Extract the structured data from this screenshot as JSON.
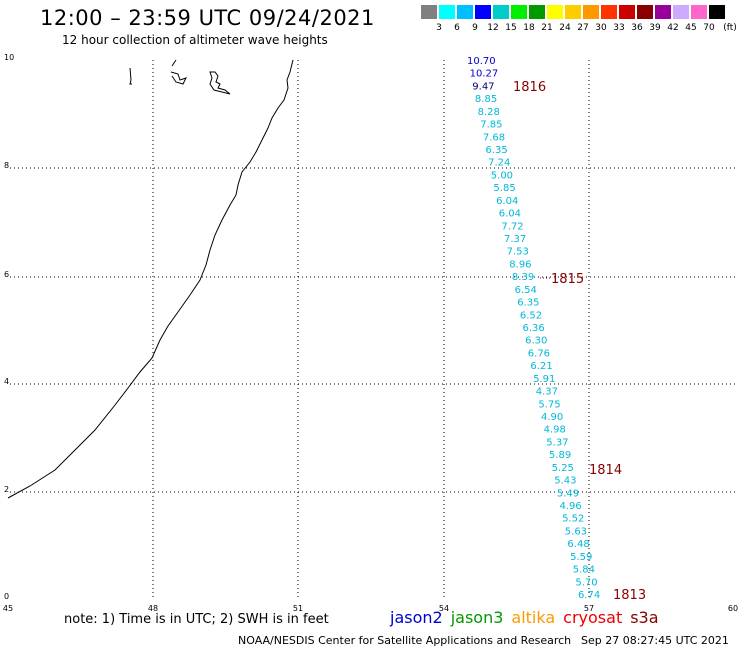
{
  "title": "12:00 – 23:59 UTC 09/24/2021",
  "subtitle": "12 hour collection of altimeter wave heights",
  "legend": {
    "colors": [
      "#808080",
      "#00ffff",
      "#00bfff",
      "#0000ff",
      "#00cccc",
      "#00ee00",
      "#009900",
      "#ffff00",
      "#ffcc00",
      "#ff9900",
      "#ff3300",
      "#cc0000",
      "#880000",
      "#990099",
      "#ccaaff",
      "#ff66cc",
      "#000000"
    ],
    "labels": [
      "3",
      "6",
      "9",
      "12",
      "15",
      "18",
      "21",
      "24",
      "27",
      "30",
      "33",
      "36",
      "39",
      "42",
      "45",
      "70"
    ],
    "unit": "(ft)"
  },
  "axes": {
    "x_ticks": [
      "45",
      "48",
      "51",
      "54",
      "57",
      "60"
    ],
    "y_ticks": [
      "0",
      "2",
      "4",
      "6",
      "8",
      "10"
    ]
  },
  "track_labels": [
    "1816",
    "1815",
    "1814",
    "1813"
  ],
  "swh_values": [
    "10.70",
    "10.27",
    "9.47",
    "8.85",
    "8.28",
    "7.85",
    "7.68",
    "6.35",
    "7.24",
    "5.00",
    "5.85",
    "6.04",
    "6.04",
    "7.72",
    "7.37",
    "7.53",
    "8.96",
    "8.39",
    "6.54",
    "6.35",
    "6.52",
    "6.36",
    "6.30",
    "6.76",
    "6.21",
    "5.91",
    "4.37",
    "5.75",
    "4.90",
    "4.98",
    "5.37",
    "5.89",
    "5.25",
    "5.43",
    "5.49",
    "4.96",
    "5.52",
    "5.63",
    "6.48",
    "5.59",
    "5.84",
    "5.70",
    "6.74"
  ],
  "note": "note: 1) Time is in UTC; 2) SWH is in feet",
  "satellites": [
    {
      "name": "jason2",
      "color": "#0000cc"
    },
    {
      "name": "jason3",
      "color": "#009900"
    },
    {
      "name": "altika",
      "color": "#ff9900"
    },
    {
      "name": "cryosat",
      "color": "#ee0000"
    },
    {
      "name": "s3a",
      "color": "#880000"
    }
  ],
  "credit": "NOAA/NESDIS Center for Satellite Applications and Research",
  "timestamp": "Sep 27 08:27:45 UTC 2021"
}
